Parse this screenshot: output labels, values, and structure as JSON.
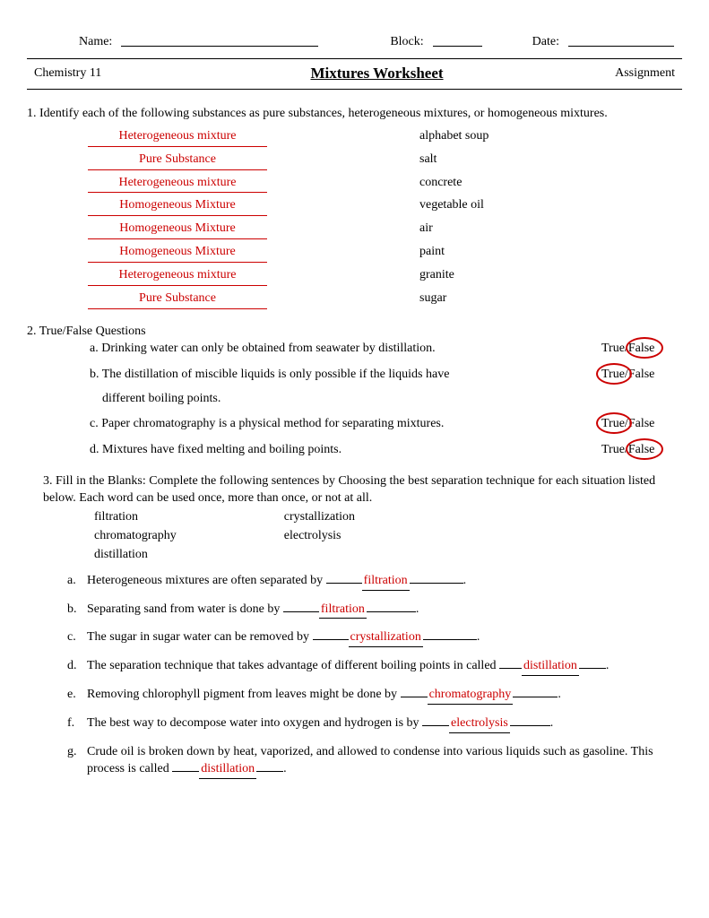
{
  "header": {
    "name_label": "Name:",
    "block_label": "Block:",
    "date_label": "Date:"
  },
  "titlebar": {
    "course": "Chemistry 11",
    "title": "Mixtures Worksheet",
    "assignment": "Assignment"
  },
  "q1": {
    "prompt": "1. Identify each of the following substances as pure substances, heterogeneous mixtures, or homogeneous mixtures.",
    "rows": [
      {
        "answer": "Heterogeneous mixture",
        "term": "alphabet soup"
      },
      {
        "answer": "Pure Substance",
        "term": "salt"
      },
      {
        "answer": "Heterogeneous mixture",
        "term": "concrete"
      },
      {
        "answer": "Homogeneous Mixture",
        "term": "vegetable oil"
      },
      {
        "answer": "Homogeneous Mixture",
        "term": "air"
      },
      {
        "answer": "Homogeneous Mixture",
        "term": "paint"
      },
      {
        "answer": "Heterogeneous mixture",
        "term": "granite"
      },
      {
        "answer": "Pure Substance",
        "term": "sugar"
      }
    ]
  },
  "q2": {
    "heading": "2. True/False Questions",
    "items": [
      {
        "letter": "a.",
        "text": "Drinking water can only be obtained from seawater by distillation.",
        "circle": "False"
      },
      {
        "letter": "b.",
        "text": "The distillation of miscible liquids is only possible if the liquids have different boiling points.",
        "circle": "True"
      },
      {
        "letter": "c.",
        "text": "Paper chromatography is a physical method for separating mixtures.",
        "circle": "True"
      },
      {
        "letter": "d.",
        "text": "Mixtures have fixed melting and boiling points.",
        "circle": "False"
      }
    ],
    "true_label": "True",
    "false_label": "False"
  },
  "q3": {
    "prompt": "3. Fill in the Blanks: Complete the following sentences by Choosing the best separation technique for each situation listed below. Each word can be used once, more than once, or not at all.",
    "techniques_col1": [
      "filtration",
      "chromatography",
      "distillation"
    ],
    "techniques_col2": [
      "crystallization",
      "electrolysis"
    ],
    "items": [
      {
        "letter": "a.",
        "before": "Heterogeneous mixtures are often separated by ",
        "pre_u": 40,
        "answer": "filtration",
        "post_u": 60,
        "after": "."
      },
      {
        "letter": "b.",
        "before": "Separating sand from water is done by ",
        "pre_u": 40,
        "answer": "filtration",
        "post_u": 55,
        "after": "."
      },
      {
        "letter": "c.",
        "before": "The sugar in sugar water can be removed by ",
        "pre_u": 40,
        "answer": "crystallization",
        "post_u": 60,
        "after": "."
      },
      {
        "letter": "d.",
        "before": "The separation technique that takes advantage of different boiling points in called ",
        "pre_u": 25,
        "answer": "distillation",
        "post_u": 30,
        "after": "."
      },
      {
        "letter": "e.",
        "before": "Removing chlorophyll pigment from leaves might be done by ",
        "pre_u": 30,
        "answer": "chromatography",
        "post_u": 50,
        "after": "."
      },
      {
        "letter": "f.",
        "before": "The best way to decompose water into oxygen and hydrogen is by ",
        "pre_u": 30,
        "answer": "electrolysis",
        "post_u": 45,
        "after": "."
      },
      {
        "letter": "g.",
        "before": "Crude oil is broken down by heat, vaporized, and allowed to condense into various liquids such as gasoline.  This process is called ",
        "pre_u": 30,
        "answer": "distillation",
        "post_u": 30,
        "after": "."
      }
    ]
  },
  "colors": {
    "answer_red": "#cc0000",
    "text_black": "#000000",
    "background": "#ffffff"
  }
}
